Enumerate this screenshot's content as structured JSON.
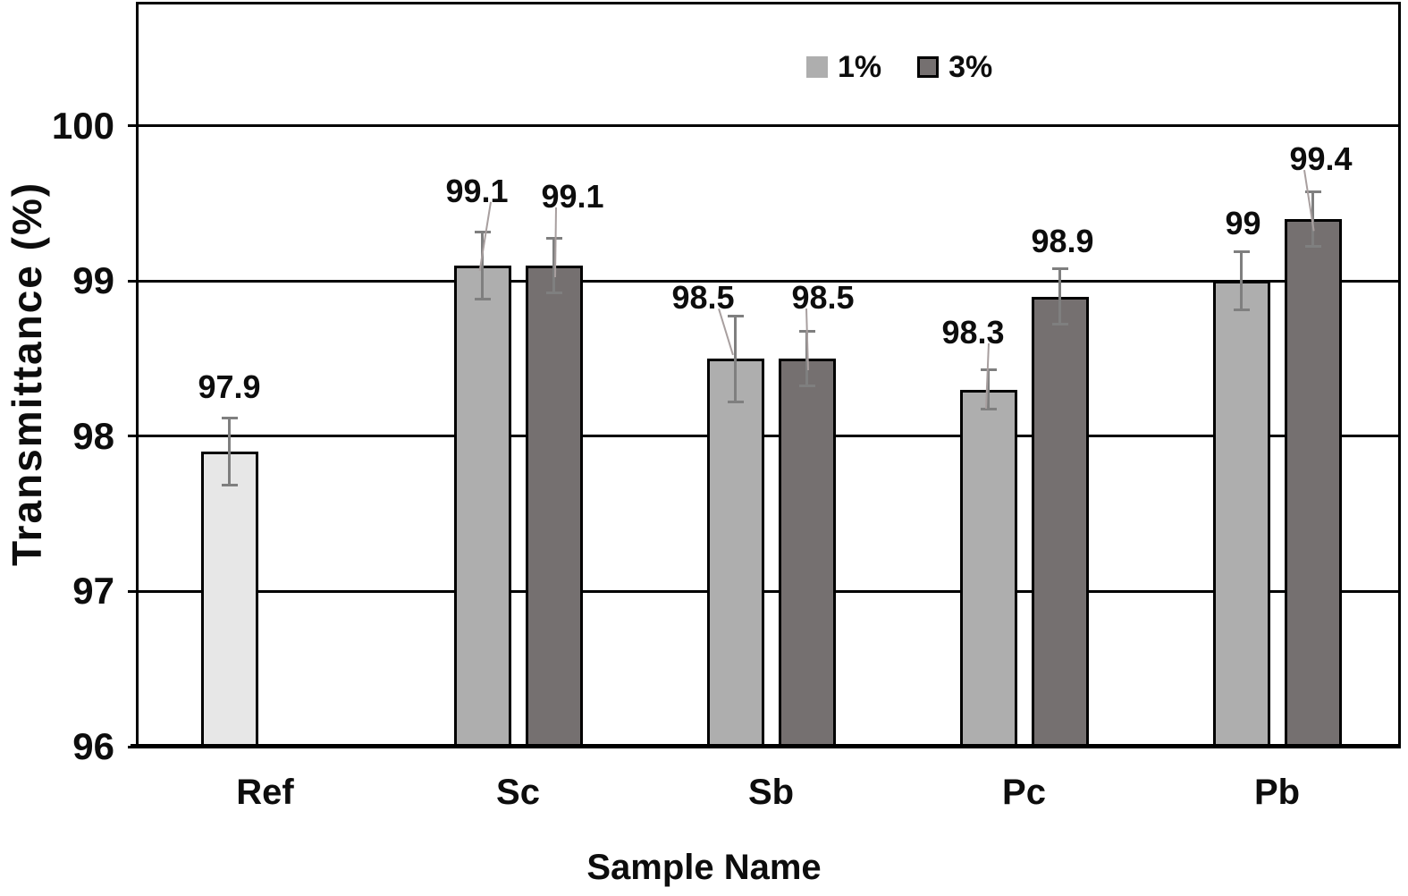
{
  "chart_data": {
    "type": "bar",
    "title": "",
    "xlabel": "Sample Name",
    "ylabel": "Transmittance (%)",
    "ylim": [
      96,
      100.8
    ],
    "yticks": [
      96,
      97,
      98,
      99,
      100
    ],
    "gridline_values": [
      97,
      98,
      99,
      100
    ],
    "grid": "horizontal-only",
    "legend_position": "top-center",
    "categories": [
      "Ref",
      "Sc",
      "Sb",
      "Pc",
      "Pb"
    ],
    "series": [
      {
        "name": "1%",
        "color": "#aeaeae",
        "point_colors": [
          "#e7e7e7",
          "#aeaeae",
          "#aeaeae",
          "#aeaeae",
          "#aeaeae"
        ],
        "values": [
          97.9,
          99.1,
          98.5,
          98.3,
          99
        ],
        "value_labels": [
          "97.9",
          "99.1",
          "98.5",
          "98.3",
          "99"
        ],
        "errors": [
          0.22,
          0.22,
          0.28,
          0.13,
          0.19
        ],
        "label_layout": [
          {
            "dx": 0,
            "gap": 18,
            "leader": false
          },
          {
            "dx": -6,
            "gap": 29,
            "leader": true
          },
          {
            "dx": -36,
            "gap": 4,
            "leader": true
          },
          {
            "dx": -17,
            "gap": 25,
            "leader": true
          },
          {
            "dx": 2,
            "gap": 15,
            "leader": false
          }
        ]
      },
      {
        "name": "3%",
        "color": "#757070",
        "point_colors": [
          "#757070",
          "#757070",
          "#757070",
          "#757070",
          "#757070"
        ],
        "values": [
          null,
          99.1,
          98.5,
          98.9,
          99.4
        ],
        "value_labels": [
          "",
          "99.1",
          "98.5",
          "98.9",
          "99.4"
        ],
        "errors": [
          null,
          0.18,
          0.18,
          0.18,
          0.18
        ],
        "label_layout": [
          null,
          {
            "dx": 21,
            "gap": 30,
            "leader": true
          },
          {
            "dx": 18,
            "gap": 21,
            "leader": true
          },
          {
            "dx": 3,
            "gap": 14,
            "leader": false
          },
          {
            "dx": 9,
            "gap": 20,
            "leader": true
          }
        ]
      }
    ],
    "legend": {
      "items": [
        {
          "label": "1%",
          "color": "#aeaeae",
          "border": false
        },
        {
          "label": "3%",
          "color": "#757070",
          "border": true
        }
      ]
    },
    "colors": {
      "bar_border": "#000000",
      "error_bar": "#7f7f7f",
      "leader_line": "#a89f9f",
      "axis": "#000000",
      "text": "#0d0d0d",
      "background": "#ffffff"
    }
  }
}
